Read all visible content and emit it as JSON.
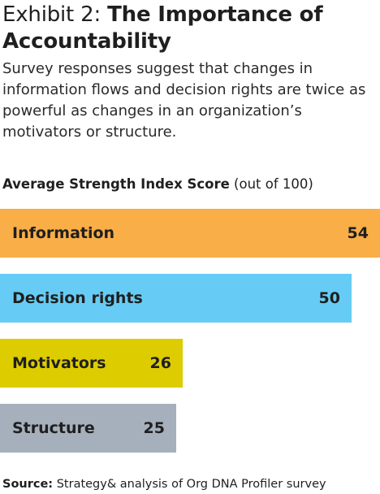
{
  "exhibit_label": "Exhibit 2:",
  "title": "The Importance of Accountability",
  "subtitle": "Survey responses suggest that changes in information flows and decision rights are twice as powerful as changes in an organization’s motivators or structure.",
  "source": {
    "label": "Source:",
    "text": "Strategy& analysis of Org DNA Profiler survey"
  },
  "chart_data": {
    "type": "bar",
    "orientation": "horizontal",
    "title": "",
    "ylabel": "Average Strength Index Score",
    "ylabel_unit": "(out of 100)",
    "categories": [
      "Information",
      "Decision rights",
      "Motivators",
      "Structure"
    ],
    "values": [
      54,
      50,
      26,
      25
    ],
    "colors": [
      "#F9AE47",
      "#66CCF5",
      "#DDCC00",
      "#A6B0BC"
    ],
    "xlim": [
      0,
      54
    ],
    "grid": false,
    "legend": "none"
  }
}
